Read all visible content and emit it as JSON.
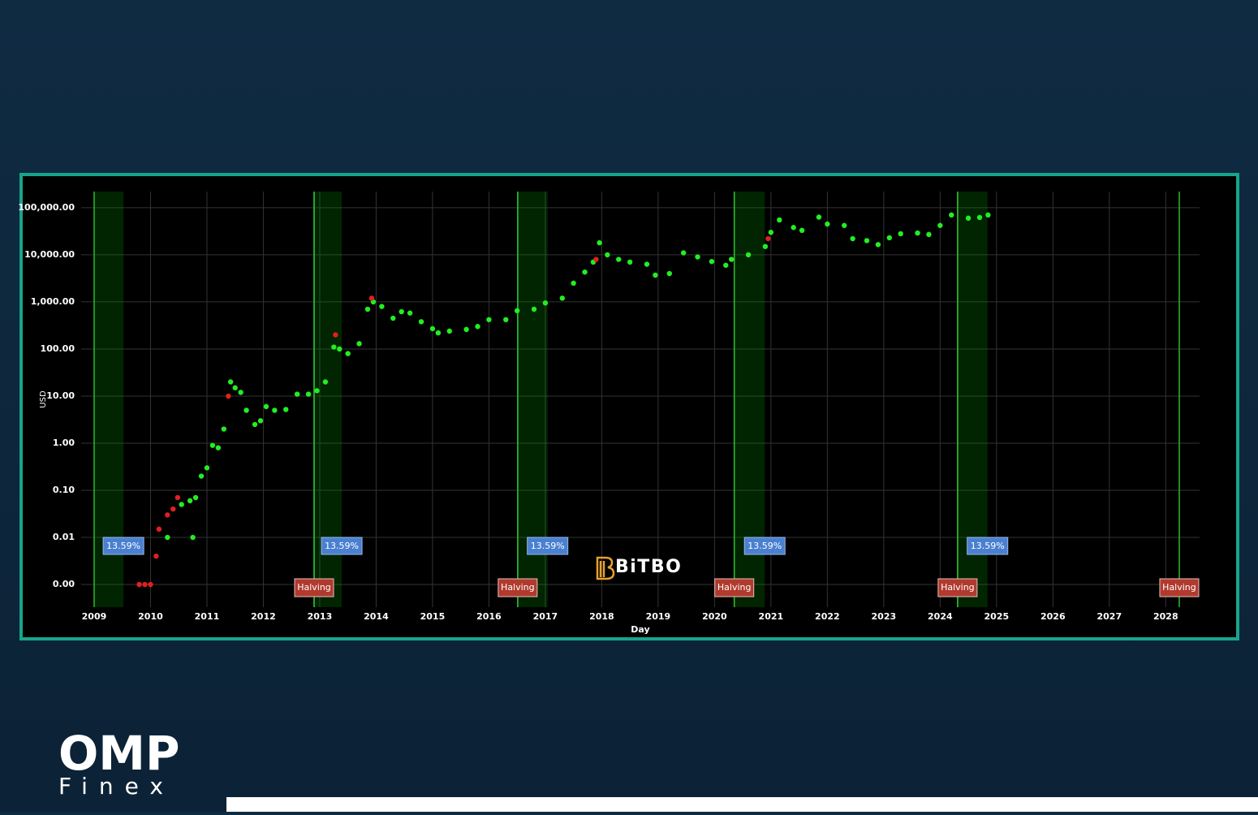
{
  "chart_data": {
    "type": "scatter",
    "y_label": "USD",
    "x_label": "Day",
    "xlim": [
      2008.77,
      2028.6
    ],
    "xticks": [
      2009,
      2010,
      2011,
      2012,
      2013,
      2014,
      2015,
      2016,
      2017,
      2018,
      2019,
      2020,
      2021,
      2022,
      2023,
      2024,
      2025,
      2026,
      2027,
      2028
    ],
    "ylim": [
      0.00033,
      220000
    ],
    "log_y": true,
    "grid": true,
    "yticks": [
      {
        "value": 0.001,
        "label": "0.00"
      },
      {
        "value": 0.01,
        "label": "0.01"
      },
      {
        "value": 0.1,
        "label": "0.10"
      },
      {
        "value": 1,
        "label": "1.00"
      },
      {
        "value": 10,
        "label": "10.00"
      },
      {
        "value": 100,
        "label": "100.00"
      },
      {
        "value": 1000,
        "label": "1,000.00"
      },
      {
        "value": 10000,
        "label": "10,000.00"
      },
      {
        "value": 100000,
        "label": "100,000.00"
      }
    ],
    "series": [
      {
        "color": "#22ee22",
        "x": [
          2010.3,
          2010.55,
          2010.7,
          2010.75,
          2010.8,
          2010.9,
          2011.0,
          2011.1,
          2011.2,
          2011.3,
          2011.42,
          2011.5,
          2011.6,
          2011.7,
          2011.85,
          2011.95,
          2012.05,
          2012.2,
          2012.4,
          2012.6,
          2012.8,
          2012.95,
          2013.1,
          2013.25,
          2013.35,
          2013.5,
          2013.7,
          2013.85,
          2013.95,
          2014.1,
          2014.3,
          2014.45,
          2014.6,
          2014.8,
          2015.0,
          2015.1,
          2015.3,
          2015.6,
          2015.8,
          2016.0,
          2016.3,
          2016.5,
          2016.8,
          2017.0,
          2017.3,
          2017.5,
          2017.7,
          2017.85,
          2017.96,
          2018.1,
          2018.3,
          2018.5,
          2018.8,
          2018.95,
          2019.2,
          2019.45,
          2019.7,
          2019.95,
          2020.2,
          2020.3,
          2020.6,
          2020.9,
          2021.0,
          2021.15,
          2021.4,
          2021.55,
          2021.85,
          2022.0,
          2022.3,
          2022.45,
          2022.7,
          2022.9,
          2023.1,
          2023.3,
          2023.6,
          2023.8,
          2024.0,
          2024.2,
          2024.5,
          2024.7,
          2024.85
        ],
        "values": [
          0.01,
          0.05,
          0.06,
          0.01,
          0.07,
          0.2,
          0.3,
          0.9,
          0.8,
          2,
          20,
          15,
          12,
          5,
          2.5,
          3,
          6,
          5,
          5.2,
          11,
          11,
          13,
          20,
          110,
          100,
          80,
          130,
          700,
          1000,
          800,
          450,
          620,
          580,
          380,
          270,
          220,
          240,
          260,
          300,
          420,
          420,
          650,
          700,
          950,
          1200,
          2500,
          4300,
          7000,
          18000,
          10000,
          8000,
          7000,
          6300,
          3700,
          4000,
          11000,
          9000,
          7200,
          6000,
          8000,
          10000,
          15000,
          30000,
          55000,
          38000,
          33000,
          63000,
          45000,
          42000,
          22000,
          20000,
          16500,
          23000,
          28000,
          29000,
          27000,
          42000,
          70000,
          60000,
          62000,
          70000
        ]
      },
      {
        "color": "#e02020",
        "x": [
          2009.8,
          2009.9,
          2010.0,
          2010.1,
          2010.15,
          2010.3,
          2010.4,
          2010.48,
          2011.38,
          2013.28,
          2013.92,
          2017.9,
          2020.95
        ],
        "values": [
          0.001,
          0.001,
          0.001,
          0.004,
          0.015,
          0.03,
          0.04,
          0.07,
          10,
          200,
          1200,
          8000,
          22000
        ]
      }
    ],
    "bands": [
      {
        "start": 2009.0,
        "end": 2009.52,
        "label": "13.59%"
      },
      {
        "start": 2012.9,
        "end": 2013.39,
        "label": "13.59%"
      },
      {
        "start": 2016.51,
        "end": 2017.04,
        "label": "13.59%"
      },
      {
        "start": 2020.35,
        "end": 2020.89,
        "label": "13.59%"
      },
      {
        "start": 2024.31,
        "end": 2024.84,
        "label": "13.59%"
      }
    ],
    "halvings": [
      {
        "x": 2012.9,
        "label": "Halving"
      },
      {
        "x": 2016.51,
        "label": "Halving"
      },
      {
        "x": 2020.35,
        "label": "Halving"
      },
      {
        "x": 2024.31,
        "label": "Halving"
      },
      {
        "x": 2028.24,
        "label": "Halving"
      }
    ]
  },
  "branding": {
    "watermark": "BiTBO",
    "logo_title": "OMP",
    "logo_subtitle": "Finex"
  }
}
